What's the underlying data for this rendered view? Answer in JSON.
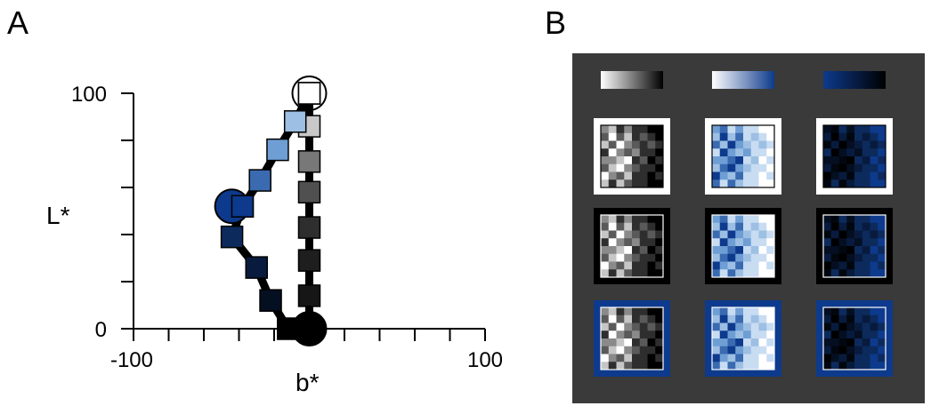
{
  "panel_a_letter": "A",
  "panel_b_letter": "B",
  "chart_data": {
    "type": "scatter",
    "title": "",
    "xlabel": "b*",
    "ylabel": "L*",
    "xlim": [
      -100,
      100
    ],
    "ylim": [
      0,
      100
    ],
    "xticks": [
      -100,
      100
    ],
    "xtick_labels": [
      "-100",
      "100"
    ],
    "yticks": [
      0,
      100
    ],
    "ytick_labels": [
      "0",
      "100"
    ],
    "grid": false,
    "series": [
      {
        "marker": "square",
        "line_color": "#000000",
        "x": [
          0,
          0,
          0,
          0,
          0,
          0,
          0,
          0
        ],
        "y": [
          100,
          86,
          71,
          58,
          43,
          29,
          14,
          0
        ],
        "colors": [
          "#ffffff",
          "#c8c8c8",
          "#787878",
          "#505050",
          "#2e2e2e",
          "#1e1e1e",
          "#161616",
          "#000000"
        ]
      },
      {
        "marker": "square",
        "line_color": "#000000",
        "x": [
          0,
          -8,
          -18,
          -28,
          -38,
          -44,
          -30,
          -22,
          -12,
          0
        ],
        "y": [
          100,
          88,
          76,
          63,
          52,
          39,
          26,
          12,
          0,
          0
        ],
        "colors": [
          "#ffffff",
          "#9dbfe3",
          "#6e9ed4",
          "#3a6ab0",
          "#0d3a8c",
          "#0c2a5c",
          "#081b3e",
          "#050f22",
          "#000000",
          "#000000"
        ]
      }
    ],
    "circled_points": [
      {
        "x": 0,
        "y": 100,
        "fill": "#ffffff"
      },
      {
        "x": -44,
        "y": 52,
        "fill": "#0d3a8c"
      },
      {
        "x": 0,
        "y": 0,
        "fill": "#000000"
      }
    ]
  },
  "panel_b": {
    "background_color": "#3a3a3a",
    "gradient_bars": [
      {
        "from": "#ffffff",
        "to": "#000000"
      },
      {
        "from": "#ffffff",
        "to": "#0d3a8c"
      },
      {
        "from": "#0d3a8c",
        "to": "#000000"
      }
    ],
    "row_backgrounds": [
      "#ffffff",
      "#000000",
      "#0d3a8c"
    ],
    "patch_palettes": [
      [
        "#000000",
        "#2e2e2e",
        "#5a5a5a",
        "#8a8a8a",
        "#c6c6c6",
        "#ffffff"
      ],
      [
        "#ffffff",
        "#c8dcf2",
        "#9dbfe3",
        "#6e9ed4",
        "#3a6ab0",
        "#0d3a8c"
      ],
      [
        "#0d3a8c",
        "#0c2a5c",
        "#081b3e",
        "#050f22",
        "#02070f",
        "#000000"
      ]
    ],
    "patch_grid_levels": [
      [
        3,
        4,
        1,
        3,
        1,
        1,
        0,
        0
      ],
      [
        2,
        5,
        2,
        4,
        1,
        2,
        1,
        0
      ],
      [
        4,
        2,
        5,
        3,
        2,
        1,
        2,
        1
      ],
      [
        1,
        5,
        3,
        2,
        3,
        1,
        1,
        0
      ],
      [
        3,
        3,
        4,
        5,
        1,
        2,
        0,
        1
      ],
      [
        2,
        4,
        5,
        3,
        2,
        1,
        1,
        0
      ],
      [
        5,
        3,
        2,
        4,
        1,
        1,
        0,
        1
      ],
      [
        4,
        1,
        4,
        2,
        1,
        1,
        0,
        0
      ]
    ]
  }
}
